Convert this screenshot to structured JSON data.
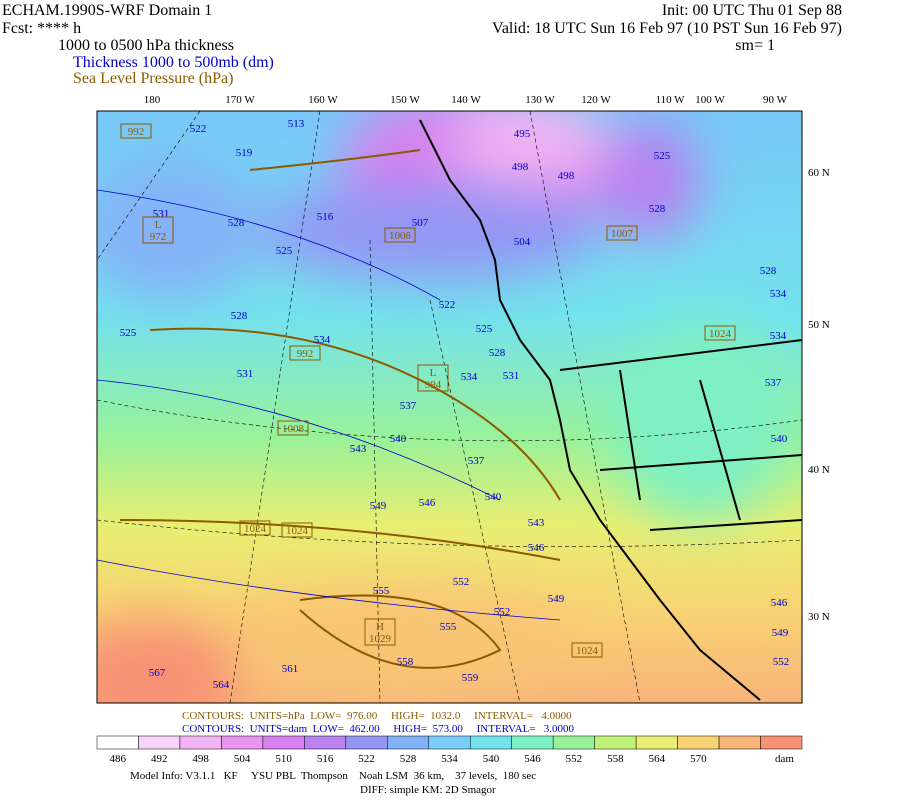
{
  "header": {
    "model": "ECHAM.1990S-WRF Domain 1",
    "init": "Init: 00 UTC Thu 01 Sep 88",
    "fcst": "Fcst: **** h",
    "valid": "Valid: 18 UTC Sun 16 Feb 97 (10 PST Sun 16 Feb 97)",
    "field": "1000 to 0500 hPa thickness",
    "sm": "sm= 1",
    "legend_thickness": "Thickness 1000 to 500mb (dm)",
    "legend_slp": "Sea Level Pressure (hPa)"
  },
  "map": {
    "lon_labels": [
      "180",
      "170 W",
      "160 W",
      "150 W",
      "140 W",
      "130 W",
      "120 W",
      "110 W",
      "100 W",
      "90 W"
    ],
    "lat_labels": [
      "60 N",
      "50 N",
      "40 N",
      "30 N"
    ],
    "thickness_labels": [
      "522",
      "513",
      "519",
      "531",
      "528",
      "525",
      "516",
      "507",
      "504",
      "498",
      "495",
      "498",
      "525",
      "528",
      "528",
      "534",
      "534",
      "537",
      "540",
      "522",
      "525",
      "528",
      "531",
      "534",
      "537",
      "540",
      "543",
      "537",
      "540",
      "546",
      "549",
      "543",
      "546",
      "552",
      "552",
      "555",
      "555",
      "558",
      "559",
      "549",
      "546",
      "549",
      "552",
      "528",
      "534",
      "525",
      "531",
      "561",
      "564",
      "567"
    ],
    "slp_labels": [
      {
        "value": "992"
      },
      {
        "letter": "L",
        "value": "972"
      },
      {
        "value": "1008"
      },
      {
        "value": "1007"
      },
      {
        "value": "992"
      },
      {
        "letter": "L",
        "value": "994"
      },
      {
        "value": "1008"
      },
      {
        "value": "1024"
      },
      {
        "value": "1024"
      },
      {
        "letter": "H",
        "value": "1029"
      },
      {
        "value": "1024"
      },
      {
        "value": "1024"
      }
    ]
  },
  "footer": {
    "contours_slp": "CONTOURS:  UNITS=hPa  LOW=  976.00     HIGH=  1032.0     INTERVAL=   4.0000",
    "contours_thk": "CONTOURS:  UNITS=dam  LOW=  462.00     HIGH=  573.00     INTERVAL=   3.0000",
    "colorbar_labels": [
      "486",
      "492",
      "498",
      "504",
      "510",
      "516",
      "522",
      "528",
      "534",
      "540",
      "546",
      "552",
      "558",
      "564",
      "570"
    ],
    "colorbar_colors": [
      "#ffffff",
      "#f8d4f8",
      "#f2b4f2",
      "#e896ee",
      "#d880ee",
      "#b882f0",
      "#9496f4",
      "#84b2f8",
      "#78cef8",
      "#74e2ec",
      "#7ef0c4",
      "#98f29a",
      "#c0f27a",
      "#e8ee72",
      "#f8d274",
      "#f8b47a",
      "#f89274"
    ],
    "colorbar_unit": "dam",
    "model_info": "Model Info: V3.1.1   KF     YSU PBL  Thompson    Noah LSM  36 km,    37 levels,  180 sec",
    "diff": "DIFF: simple KM: 2D Smagor"
  }
}
